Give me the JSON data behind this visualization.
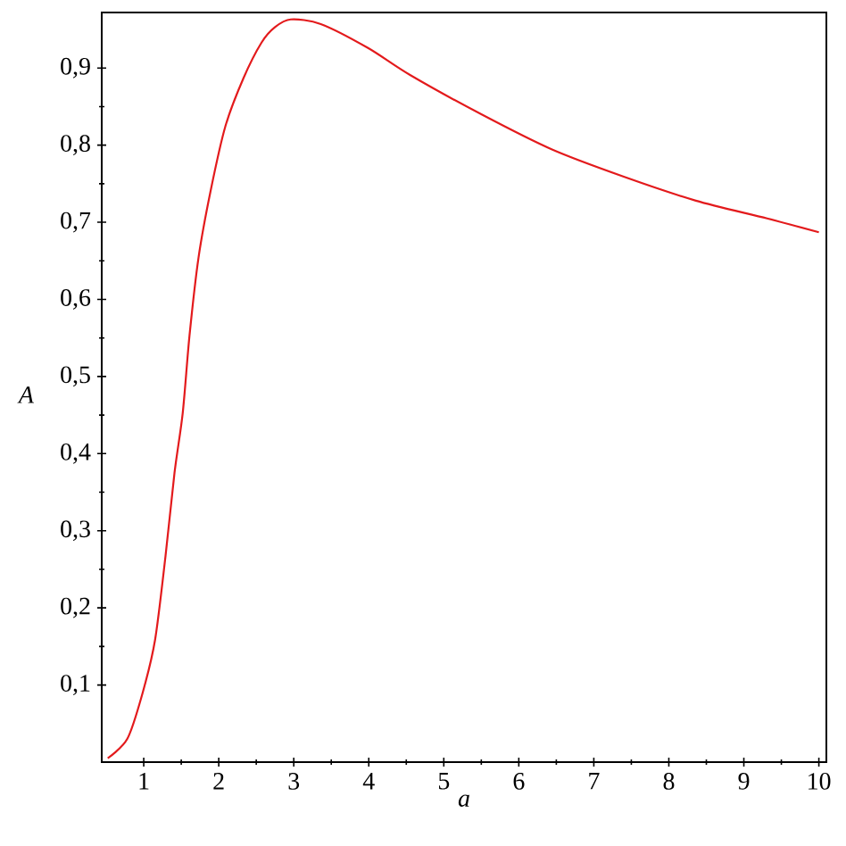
{
  "chart_data": {
    "type": "line",
    "xlabel": "a",
    "ylabel": "A",
    "xlim": [
      0.44,
      10.1
    ],
    "ylim": [
      0,
      0.972
    ],
    "xticks": [
      1,
      2,
      3,
      4,
      5,
      6,
      7,
      8,
      9,
      10
    ],
    "yticks": [
      {
        "value": 0.1,
        "label": "0,1"
      },
      {
        "value": 0.2,
        "label": "0,2"
      },
      {
        "value": 0.3,
        "label": "0,3"
      },
      {
        "value": 0.4,
        "label": "0,4"
      },
      {
        "value": 0.5,
        "label": "0,5"
      },
      {
        "value": 0.6,
        "label": "0,6"
      },
      {
        "value": 0.7,
        "label": "0,7"
      },
      {
        "value": 0.8,
        "label": "0,8"
      },
      {
        "value": 0.9,
        "label": "0,9"
      }
    ],
    "series": [
      {
        "color": "#e31a1c",
        "x": [
          0.52,
          0.78,
          0.98,
          1.15,
          1.29,
          1.41,
          1.52,
          1.61,
          1.73,
          1.89,
          2.09,
          2.33,
          2.57,
          2.75,
          2.96,
          3.36,
          3.99,
          4.55,
          5.5,
          6.45,
          7.4,
          8.36,
          9.31,
          10.0
        ],
        "values": [
          0.005,
          0.03,
          0.088,
          0.158,
          0.267,
          0.375,
          0.453,
          0.553,
          0.654,
          0.74,
          0.825,
          0.887,
          0.933,
          0.953,
          0.963,
          0.957,
          0.926,
          0.891,
          0.84,
          0.794,
          0.759,
          0.728,
          0.705,
          0.687
        ]
      }
    ],
    "marker": "none",
    "line_style": "solid"
  }
}
